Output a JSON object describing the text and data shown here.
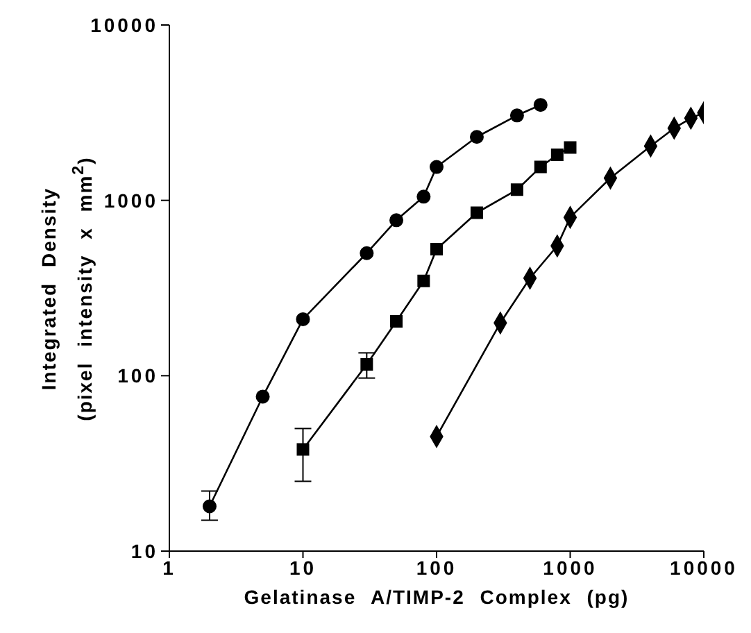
{
  "chart_data": {
    "type": "line",
    "xlabel": "Gelatinase A/TIMP-2 Complex (pg)",
    "ylabel": "Integrated Density (pixel intensity x mm$^{2}$)",
    "log": "xy",
    "xlim": [
      1,
      10000
    ],
    "ylim": [
      10,
      10000
    ],
    "xticks": [
      1,
      10,
      100,
      1000,
      10000
    ],
    "yticks": [
      10,
      100,
      1000,
      10000
    ],
    "grid": false,
    "legend": false,
    "series": [
      {
        "color": "#000000",
        "marker": "circle",
        "x": [
          2,
          5,
          10,
          30,
          50,
          80,
          100,
          200,
          400,
          600
        ],
        "values": [
          18,
          76,
          210,
          500,
          770,
          1050,
          1550,
          2300,
          3050,
          3500
        ],
        "errors": [
          [
            15,
            22
          ],
          null,
          null,
          null,
          null,
          null,
          null,
          null,
          null,
          null
        ]
      },
      {
        "color": "#000000",
        "marker": "square",
        "x": [
          10,
          30,
          50,
          80,
          100,
          200,
          400,
          600,
          800,
          1000
        ],
        "values": [
          38,
          116,
          204,
          347,
          527,
          850,
          1150,
          1550,
          1820,
          2000
        ],
        "errors": [
          [
            25,
            50
          ],
          [
            97,
            135
          ],
          null,
          null,
          null,
          null,
          null,
          null,
          null,
          null
        ]
      },
      {
        "color": "#000000",
        "marker": "diamond",
        "x": [
          100,
          300,
          500,
          800,
          1000,
          2000,
          4000,
          6000,
          8000,
          10000
        ],
        "values": [
          45,
          200,
          360,
          550,
          800,
          1340,
          2040,
          2580,
          2940,
          3160
        ]
      }
    ]
  }
}
